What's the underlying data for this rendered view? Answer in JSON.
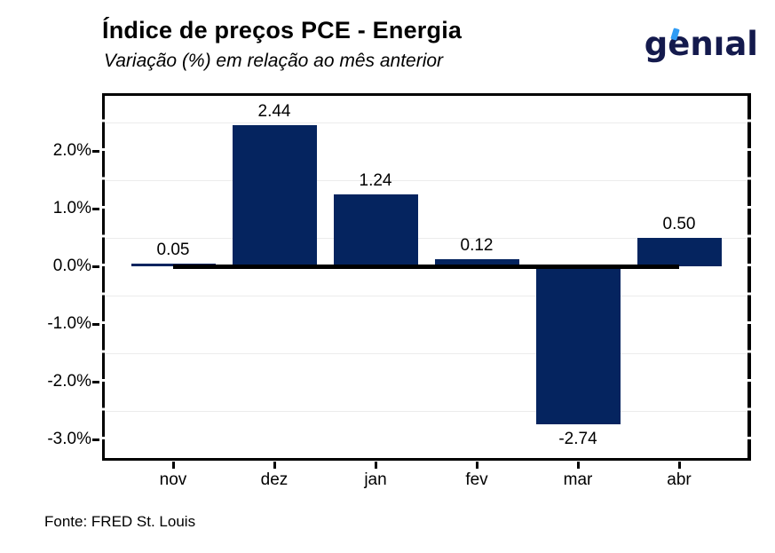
{
  "header": {
    "title": "Índice de preços PCE - Energia",
    "subtitle": "Variação (%) em relação ao mês anterior",
    "logo_text": "genıal"
  },
  "footer": {
    "source": "Fonte: FRED St. Louis"
  },
  "colors": {
    "bar": "#05245f",
    "logo_navy": "#141a4d",
    "logo_accent": "#2f9bf4",
    "zero_line": "#000000",
    "gridline": "#ececec",
    "axis_text": "#000000"
  },
  "chart_data": {
    "type": "bar",
    "title": "Índice de preços PCE - Energia",
    "subtitle": "Variação (%) em relação ao mês anterior",
    "source": "Fonte: FRED St. Louis",
    "xlabel": "",
    "ylabel": "",
    "categories": [
      "nov",
      "dez",
      "jan",
      "fev",
      "mar",
      "abr"
    ],
    "values": [
      0.05,
      2.44,
      1.24,
      0.12,
      -2.74,
      0.5
    ],
    "value_labels": [
      "0.05",
      "2.44",
      "1.24",
      "0.12",
      "-2.74",
      "0.50"
    ],
    "unit": "% m/m",
    "ylim": [
      -3.38,
      3.0
    ],
    "y_ticks": {
      "values": [
        2,
        1,
        0,
        -1,
        -2,
        -3
      ],
      "labels": [
        "2.0%",
        "1.0%",
        "0.0%",
        "-1.0%",
        "-2.0%",
        "-3.0%"
      ]
    },
    "y_minor_gridlines": [
      2.5,
      1.5,
      0.5,
      -0.5,
      -1.5,
      -2.5
    ],
    "zero_line": {
      "value": 0,
      "from_category": "nov",
      "to_category": "abr"
    },
    "grid": "horizontal-minor-only",
    "legend": "none"
  }
}
